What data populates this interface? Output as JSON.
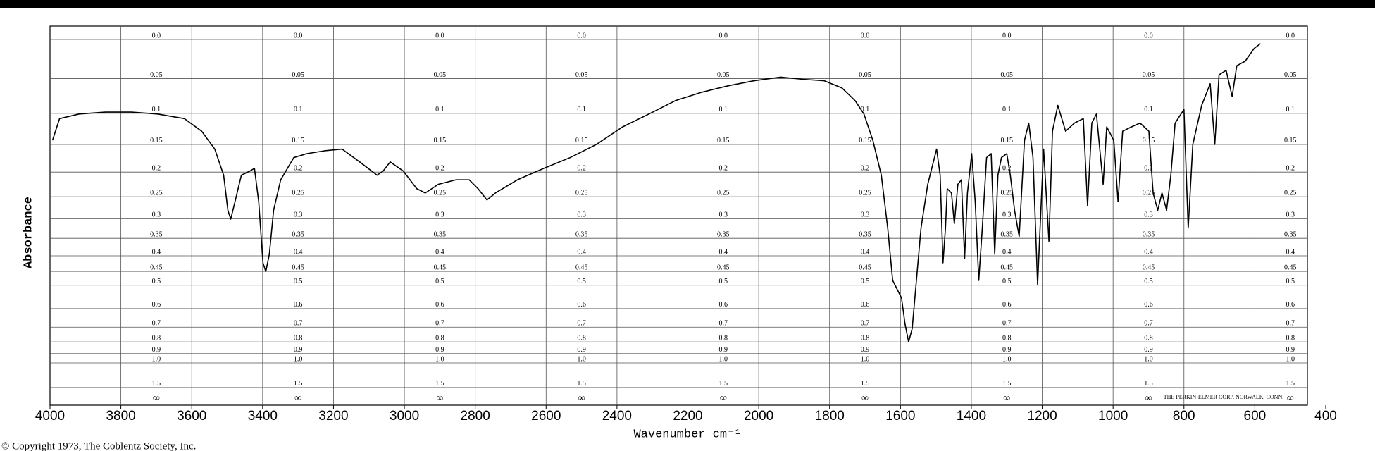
{
  "chart_data": {
    "type": "line",
    "y_label": "Absorbance",
    "x_label": "Wavenumber cm⁻¹",
    "copyright": "© Copyright 1973, The Coblentz Society, Inc.",
    "imprint": "THE PERKIN-ELMER CORP. NORWALK, CONN.",
    "y_end_label": "∞",
    "xlim": [
      4000,
      400
    ],
    "xticks": [
      4000,
      3800,
      3600,
      3400,
      3200,
      3000,
      2800,
      2600,
      2400,
      2200,
      2000,
      1800,
      1600,
      1400,
      1200,
      1000,
      800,
      600,
      400
    ],
    "yscale": "transmittance",
    "yticks": [
      {
        "value": 0,
        "label": "0.0"
      },
      0.05,
      0.1,
      0.15,
      0.2,
      0.25,
      0.3,
      0.35,
      0.4,
      0.45,
      0.5,
      0.6,
      0.7,
      0.8,
      0.9,
      {
        "value": 1,
        "label": "1.0"
      },
      1.5
    ],
    "grid": true,
    "series": [
      {
        "color": "#000000",
        "x": [
          3993,
          3973,
          3918,
          3844,
          3770,
          3696,
          3621,
          3572,
          3535,
          3510,
          3498,
          3490,
          3478,
          3460,
          3436,
          3423,
          3411,
          3399,
          3391,
          3381,
          3369,
          3349,
          3312,
          3275,
          3225,
          3176,
          3126,
          3077,
          3060,
          3040,
          3003,
          2965,
          2941,
          2904,
          2854,
          2817,
          2792,
          2767,
          2743,
          2681,
          2607,
          2532,
          2458,
          2384,
          2310,
          2235,
          2161,
          2087,
          2013,
          1938,
          1876,
          1815,
          1765,
          1728,
          1703,
          1678,
          1654,
          1636,
          1622,
          1597,
          1587,
          1577,
          1567,
          1555,
          1542,
          1523,
          1498,
          1488,
          1480,
          1473,
          1468,
          1456,
          1448,
          1438,
          1428,
          1419,
          1411,
          1399,
          1389,
          1379,
          1369,
          1357,
          1344,
          1334,
          1325,
          1315,
          1300,
          1290,
          1278,
          1265,
          1250,
          1238,
          1226,
          1213,
          1206,
          1196,
          1181,
          1171,
          1156,
          1134,
          1109,
          1084,
          1072,
          1060,
          1047,
          1028,
          1018,
          998,
          986,
          973,
          948,
          924,
          899,
          887,
          874,
          862,
          849,
          837,
          825,
          800,
          788,
          775,
          750,
          726,
          713,
          701,
          681,
          664,
          651,
          627,
          602,
          584
        ],
        "values": [
          0.143,
          0.108,
          0.101,
          0.098,
          0.098,
          0.101,
          0.108,
          0.128,
          0.158,
          0.206,
          0.28,
          0.301,
          0.261,
          0.206,
          0.198,
          0.193,
          0.261,
          0.422,
          0.451,
          0.395,
          0.28,
          0.215,
          0.173,
          0.166,
          0.161,
          0.158,
          0.181,
          0.206,
          0.198,
          0.181,
          0.198,
          0.233,
          0.242,
          0.224,
          0.215,
          0.215,
          0.233,
          0.257,
          0.242,
          0.215,
          0.193,
          0.173,
          0.15,
          0.121,
          0.101,
          0.081,
          0.069,
          0.06,
          0.053,
          0.048,
          0.051,
          0.053,
          0.063,
          0.081,
          0.101,
          0.143,
          0.206,
          0.323,
          0.482,
          0.552,
          0.683,
          0.8,
          0.71,
          0.482,
          0.323,
          0.224,
          0.158,
          0.206,
          0.422,
          0.323,
          0.233,
          0.242,
          0.312,
          0.224,
          0.215,
          0.408,
          0.242,
          0.166,
          0.261,
          0.482,
          0.323,
          0.173,
          0.166,
          0.395,
          0.206,
          0.173,
          0.166,
          0.206,
          0.28,
          0.345,
          0.143,
          0.115,
          0.173,
          0.499,
          0.323,
          0.158,
          0.358,
          0.128,
          0.088,
          0.128,
          0.115,
          0.108,
          0.27,
          0.115,
          0.101,
          0.224,
          0.121,
          0.143,
          0.261,
          0.128,
          0.121,
          0.115,
          0.128,
          0.242,
          0.28,
          0.242,
          0.28,
          0.206,
          0.115,
          0.094,
          0.323,
          0.15,
          0.088,
          0.057,
          0.15,
          0.045,
          0.039,
          0.075,
          0.033,
          0.027,
          0.011,
          0.005
        ]
      }
    ]
  }
}
